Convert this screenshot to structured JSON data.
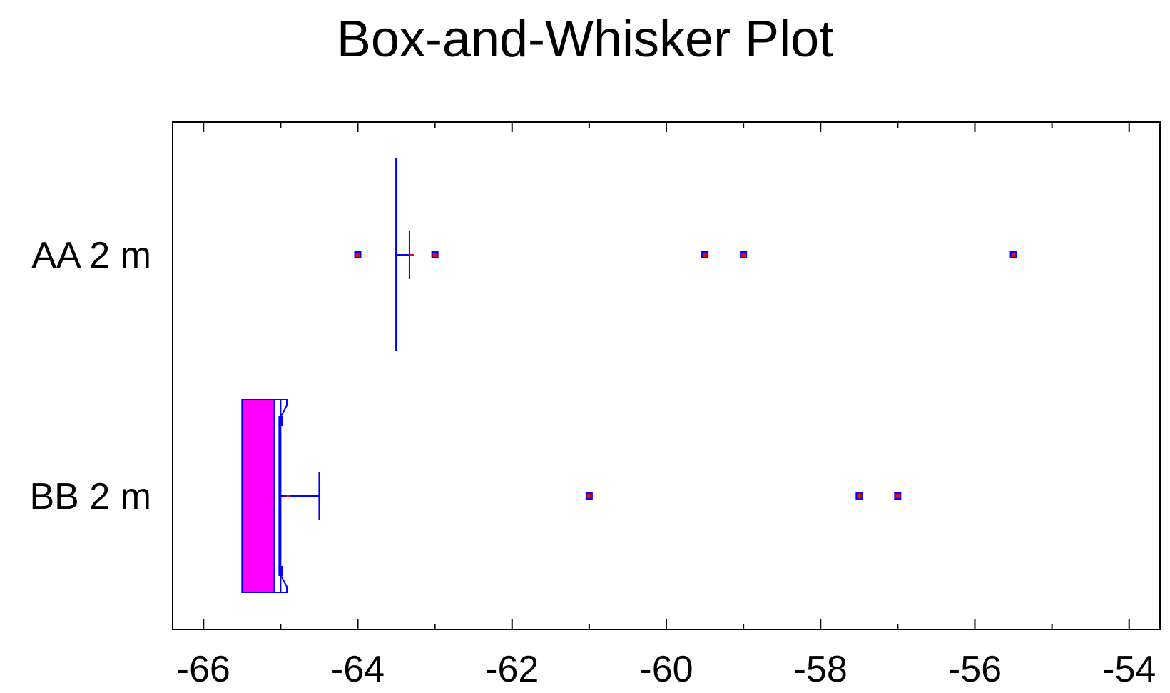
{
  "chart_data": {
    "type": "box",
    "title": "Box-and-Whisker Plot",
    "xlabel": "",
    "ylabel": "",
    "xlim": [
      -66.4,
      -53.6
    ],
    "xticks": [
      "-66",
      "-64",
      "-62",
      "-60",
      "-58",
      "-56",
      "-54"
    ],
    "xtick_values": [
      -66,
      -64,
      -62,
      -60,
      -58,
      -56,
      -54
    ],
    "minor_step": 1,
    "categories": [
      "AA 2 m",
      "BB 2 m"
    ],
    "series": [
      {
        "q1": -63.5,
        "median": -63.5,
        "q3": -63.5,
        "whisker_low": -63.5,
        "whisker_high": -63.33,
        "mean": -63.3,
        "notch_low": -63.5,
        "notch_high": -63.5,
        "outliers": [
          -64.0,
          -63.0,
          -59.5,
          -59.0,
          -55.5
        ]
      },
      {
        "q1": -65.5,
        "median": -65.0,
        "q3": -65.0,
        "whisker_low": -65.5,
        "whisker_high": -64.5,
        "mean": -64.9,
        "notch_low": -65.08,
        "notch_high": -64.92,
        "outliers": [
          -61.0,
          -57.5,
          -57.0
        ]
      }
    ],
    "colors": {
      "box_fill": "#ff00ff",
      "line": "#0000ff",
      "outlier": "#ff0000",
      "axis": "#000000"
    }
  }
}
